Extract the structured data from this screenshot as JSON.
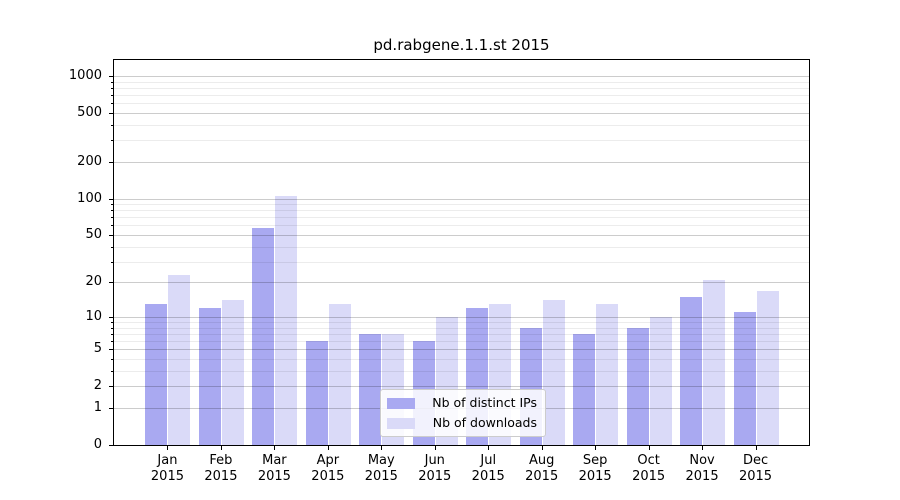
{
  "title": "pd.rabgene.1.1.st 2015",
  "chart_data": {
    "type": "bar",
    "title": "pd.rabgene.1.1.st 2015",
    "categories": [
      "Jan",
      "Feb",
      "Mar",
      "Apr",
      "May",
      "Jun",
      "Jul",
      "Aug",
      "Sep",
      "Oct",
      "Nov",
      "Dec"
    ],
    "category_year": "2015",
    "series": [
      {
        "name": "Nb of distinct IPs",
        "color": "#a9a9f1",
        "values": [
          13,
          12,
          57,
          6,
          7,
          6,
          12,
          8,
          7,
          8,
          15,
          11
        ]
      },
      {
        "name": "Nb of downloads",
        "color": "#dadaf8",
        "values": [
          23,
          14,
          105,
          13,
          7,
          10,
          13,
          14,
          13,
          10,
          21,
          17
        ]
      }
    ],
    "yscale": "log1p",
    "ylim": [
      0,
      1352
    ],
    "y_major_ticks": [
      0,
      1,
      2,
      5,
      10,
      20,
      50,
      100,
      200,
      500,
      1000
    ],
    "y_minor_ticks": [
      3,
      4,
      6,
      7,
      8,
      9,
      30,
      40,
      60,
      70,
      80,
      90,
      300,
      400,
      600,
      700,
      800,
      900
    ],
    "grid": "major-and-minor-horizontal-over-bars",
    "legend_position": "lower-center"
  },
  "colors": {
    "background": "#ffffff",
    "bar_distinct_ips": "#a9a9f1",
    "bar_downloads": "#dadaf8",
    "axis": "#000000",
    "major_grid": "#cccccc",
    "minor_grid": "#ececec",
    "legend_border": "#cccccc"
  }
}
